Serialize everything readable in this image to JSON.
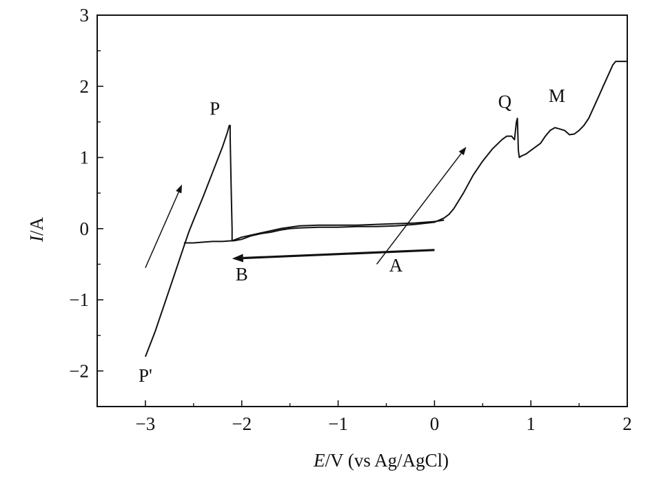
{
  "chart_data": {
    "type": "line",
    "title": "",
    "xlabel": "E/V (vs Ag/AgCl)",
    "xlabel_italic": "E",
    "xlabel_rest": "/V (vs Ag/AgCl)",
    "ylabel": "I/A",
    "ylabel_italic": "I",
    "ylabel_rest": "/A",
    "xlim": [
      -3.5,
      2.0
    ],
    "ylim": [
      -2.5,
      3.0
    ],
    "xticks": [
      -3,
      -2,
      -1,
      0,
      1,
      2
    ],
    "xtick_labels": [
      "−3",
      "−2",
      "−1",
      "0",
      "1",
      "2"
    ],
    "yticks": [
      -2,
      -1,
      0,
      1,
      2,
      3
    ],
    "ytick_labels": [
      "−2",
      "−1",
      "0",
      "1",
      "2",
      "3"
    ],
    "grid": false,
    "legend": "none",
    "series": [
      {
        "x": [
          -3.0,
          -2.9,
          -2.8,
          -2.7,
          -2.6,
          -2.55,
          -2.5,
          -2.4,
          -2.3,
          -2.2,
          -2.15,
          -2.13,
          -2.12,
          -2.12,
          -2.11,
          -2.1,
          -2.1,
          -2.08,
          -2.0,
          -1.9,
          -1.8,
          -1.7,
          -1.6,
          -1.5,
          -1.4,
          -1.2,
          -1.0,
          -0.8,
          -0.6,
          -0.4,
          -0.2,
          0.0,
          0.1,
          0.15,
          0.2,
          0.3,
          0.4,
          0.5,
          0.6,
          0.7,
          0.75,
          0.8,
          0.83,
          0.85,
          0.86,
          0.87,
          0.88,
          0.9,
          0.95,
          1.0,
          1.05,
          1.1,
          1.15,
          1.2,
          1.25,
          1.3,
          1.35,
          1.4,
          1.45,
          1.5,
          1.55,
          1.6,
          1.65,
          1.7,
          1.75,
          1.8,
          1.85,
          1.88,
          1.9,
          1.95,
          2.0
        ],
        "y": [
          -1.8,
          -1.45,
          -1.05,
          -0.65,
          -0.25,
          -0.05,
          0.12,
          0.45,
          0.8,
          1.15,
          1.35,
          1.45,
          1.45,
          1.3,
          0.6,
          0.0,
          -0.17,
          -0.17,
          -0.15,
          -0.1,
          -0.07,
          -0.05,
          -0.02,
          0.0,
          0.01,
          0.02,
          0.02,
          0.03,
          0.03,
          0.04,
          0.06,
          0.09,
          0.15,
          0.2,
          0.28,
          0.5,
          0.75,
          0.95,
          1.12,
          1.25,
          1.3,
          1.3,
          1.25,
          1.5,
          1.55,
          1.1,
          1.0,
          1.02,
          1.05,
          1.1,
          1.15,
          1.2,
          1.3,
          1.38,
          1.42,
          1.4,
          1.38,
          1.32,
          1.33,
          1.38,
          1.45,
          1.55,
          1.7,
          1.85,
          2.0,
          2.15,
          2.3,
          2.35,
          2.35,
          2.35,
          2.35
        ]
      },
      {
        "x": [
          -2.6,
          -2.5,
          -2.4,
          -2.3,
          -2.2,
          -2.1,
          -2.0,
          -1.8,
          -1.6,
          -1.4,
          -1.2,
          -1.0,
          -0.8,
          -0.6,
          -0.4,
          -0.2,
          0.0,
          0.1
        ],
        "y": [
          -0.2,
          -0.2,
          -0.19,
          -0.18,
          -0.18,
          -0.17,
          -0.12,
          -0.06,
          0.0,
          0.04,
          0.05,
          0.05,
          0.05,
          0.06,
          0.07,
          0.08,
          0.1,
          0.12
        ]
      }
    ],
    "annotations": [
      {
        "text": "P",
        "x": -2.28,
        "y": 1.6
      },
      {
        "text": "P'",
        "x": -3.0,
        "y": -2.15
      },
      {
        "text": "B",
        "x": -2.0,
        "y": -0.73
      },
      {
        "text": "A",
        "x": -0.4,
        "y": -0.6
      },
      {
        "text": "Q",
        "x": 0.73,
        "y": 1.7
      },
      {
        "text": "M",
        "x": 1.27,
        "y": 1.78
      }
    ],
    "arrows": [
      {
        "from": [
          -3.0,
          -0.55
        ],
        "to": [
          -2.62,
          0.62
        ],
        "style": "thin"
      },
      {
        "from": [
          -0.6,
          -0.5
        ],
        "to": [
          0.33,
          1.15
        ],
        "style": "thin"
      },
      {
        "from": [
          0.0,
          -0.3
        ],
        "to": [
          -2.1,
          -0.42
        ],
        "style": "thick"
      }
    ],
    "colors": {
      "line": "#111111",
      "axis": "#111111"
    }
  }
}
